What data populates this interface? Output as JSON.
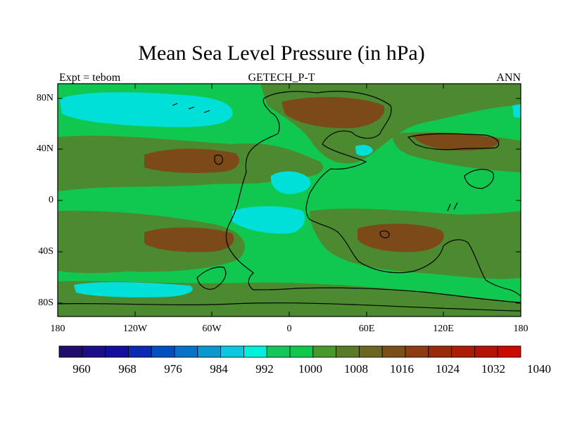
{
  "title": "Mean Sea Level Pressure (in hPa)",
  "subtitle_left": "Expt = tebom",
  "subtitle_center": "GETECH_P-T",
  "subtitle_right": "ANN",
  "lat_labels": [
    "80N",
    "40N",
    "0",
    "40S",
    "80S"
  ],
  "lon_labels": [
    "180",
    "120W",
    "60W",
    "0",
    "60E",
    "120E",
    "180"
  ],
  "map": {
    "lon_range": [
      -180,
      180
    ],
    "lat_range": [
      -90,
      90
    ],
    "background_level_hpa": 1008
  },
  "colorbar": {
    "labels": [
      "960",
      "968",
      "976",
      "984",
      "992",
      "1000",
      "1008",
      "1016",
      "1024",
      "1032",
      "1040"
    ],
    "colors": [
      "#200c6a",
      "#1a0d86",
      "#120f9c",
      "#0a2ab4",
      "#0250c0",
      "#0872c8",
      "#0b98cf",
      "#0cc7e0",
      "#00f0dc",
      "#12c858",
      "#0dc84a",
      "#48982e",
      "#5a7a28",
      "#6b6620",
      "#7a5018",
      "#8c3c10",
      "#9a2a0c",
      "#a81c08",
      "#b41206",
      "#cc0a04"
    ]
  },
  "colors": {
    "low": "#00e0d8",
    "mid": "#10c850",
    "high": "#4c8a30",
    "higher": "#5e6a24",
    "highest": "#7c4a18"
  }
}
